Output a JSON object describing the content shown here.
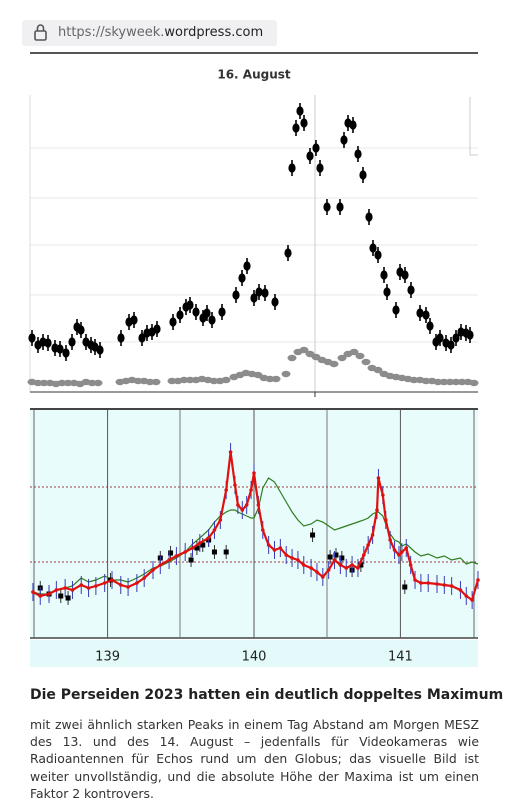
{
  "browser": {
    "url_start": "https://skyweek.",
    "url_domain": "wordpress.com"
  },
  "chart_data": [
    {
      "type": "scatter",
      "title": "16. August",
      "xlim": [
        0,
        448
      ],
      "ylim": [
        0,
        297
      ],
      "error": 8,
      "series": [
        {
          "color": "#000000",
          "marker": "dot",
          "x": [
            2,
            8,
            13,
            18,
            25,
            30,
            36,
            42,
            47,
            51,
            56,
            61,
            65,
            70,
            91,
            99,
            104,
            112,
            117,
            122,
            127,
            143,
            150,
            156,
            160,
            166,
            173,
            177,
            182,
            192,
            206,
            212,
            217,
            224,
            229,
            235,
            245,
            258,
            262,
            266,
            270,
            274,
            280,
            286,
            290,
            297,
            310,
            314,
            318,
            323,
            328,
            333,
            339,
            343,
            348,
            354,
            357,
            366,
            370,
            375,
            381,
            390,
            396,
            400,
            406,
            410,
            416,
            421,
            426,
            431,
            436,
            440
          ],
          "values": [
            54,
            47,
            50,
            49,
            44,
            43,
            39,
            50,
            65,
            62,
            50,
            47,
            45,
            42,
            54,
            70,
            72,
            54,
            59,
            60,
            63,
            70,
            77,
            85,
            87,
            80,
            74,
            79,
            72,
            80,
            97,
            114,
            126,
            94,
            100,
            99,
            90,
            139,
            224,
            264,
            281,
            269,
            236,
            244,
            224,
            185,
            185,
            252,
            269,
            267,
            238,
            217,
            175,
            144,
            137,
            117,
            100,
            82,
            120,
            117,
            102,
            79,
            77,
            66,
            50,
            54,
            49,
            47,
            54,
            60,
            59,
            57
          ]
        },
        {
          "color": "#8c8c8c",
          "marker": "flat",
          "x": [
            2,
            8,
            14,
            20,
            26,
            32,
            38,
            44,
            50,
            56,
            62,
            68,
            90,
            96,
            102,
            108,
            114,
            120,
            126,
            142,
            148,
            154,
            160,
            166,
            172,
            178,
            184,
            190,
            196,
            204,
            210,
            216,
            222,
            228,
            234,
            240,
            246,
            256,
            262,
            268,
            274,
            280,
            286,
            292,
            298,
            304,
            312,
            318,
            324,
            330,
            336,
            342,
            348,
            354,
            360,
            366,
            372,
            378,
            384,
            390,
            396,
            402,
            408,
            414,
            420,
            426,
            432,
            438,
            444
          ],
          "values": [
            10,
            9,
            9,
            9,
            8,
            9,
            9,
            9,
            8,
            10,
            9,
            9,
            10,
            11,
            12,
            11,
            11,
            10,
            10,
            11,
            11,
            12,
            12,
            12,
            13,
            12,
            11,
            11,
            12,
            15,
            17,
            19,
            18,
            17,
            14,
            13,
            13,
            18,
            34,
            40,
            42,
            38,
            35,
            32,
            30,
            28,
            34,
            38,
            40,
            36,
            30,
            24,
            22,
            18,
            16,
            15,
            14,
            13,
            12,
            12,
            11,
            11,
            10,
            10,
            10,
            10,
            10,
            10,
            9
          ]
        }
      ]
    },
    {
      "type": "line",
      "xlim": [
        138.47,
        141.53
      ],
      "xticks": [
        139,
        140,
        141
      ],
      "ylim": [
        0,
        228
      ],
      "x": [
        138.49,
        138.54,
        138.6,
        138.65,
        138.71,
        138.76,
        138.82,
        138.87,
        138.92,
        138.98,
        139.03,
        139.09,
        139.14,
        139.2,
        139.25,
        139.31,
        139.36,
        139.42,
        139.47,
        139.53,
        139.58,
        139.63,
        139.69,
        139.73,
        139.77,
        139.81,
        139.84,
        139.87,
        139.89,
        139.92,
        139.95,
        139.98,
        140,
        140.03,
        140.06,
        140.1,
        140.14,
        140.18,
        140.22,
        140.26,
        140.3,
        140.34,
        140.39,
        140.43,
        140.47,
        140.51,
        140.55,
        140.59,
        140.63,
        140.67,
        140.71,
        140.75,
        140.78,
        140.81,
        140.84,
        140.85,
        140.88,
        140.9,
        140.93,
        140.96,
        140.99,
        141.01,
        141.04,
        141.07,
        141.1,
        141.14,
        141.19,
        141.25,
        141.3,
        141.35,
        141.41,
        141.45,
        141.49,
        141.53
      ],
      "series": [
        {
          "color": "#2e7d1e",
          "values": [
            46,
            44,
            44,
            48,
            50,
            52,
            60,
            56,
            58,
            62,
            58,
            58,
            56,
            60,
            64,
            70,
            72,
            76,
            80,
            86,
            94,
            100,
            108,
            116,
            122,
            126,
            128,
            128,
            126,
            124,
            122,
            120,
            120,
            130,
            150,
            160,
            156,
            146,
            136,
            126,
            118,
            112,
            114,
            118,
            116,
            112,
            108,
            110,
            112,
            114,
            116,
            118,
            120,
            124,
            126,
            126,
            122,
            114,
            104,
            98,
            96,
            92,
            94,
            90,
            86,
            82,
            84,
            80,
            82,
            78,
            80,
            74,
            76,
            74
          ]
        },
        {
          "color": "#000000",
          "marker": "square",
          "error": 7,
          "x": [
            138.54,
            138.6,
            138.68,
            138.73,
            139.02,
            139.36,
            139.43,
            139.57,
            139.61,
            139.65,
            139.69,
            139.73,
            139.81,
            140.4,
            140.52,
            140.56,
            140.6,
            140.67,
            140.73,
            141.03
          ],
          "values": [
            50,
            44,
            42,
            40,
            58,
            80,
            85,
            78,
            90,
            93,
            98,
            86,
            86,
            103,
            81,
            83,
            80,
            68,
            73,
            51
          ]
        },
        {
          "color": "#e01010",
          "marker": "dot",
          "error": 9,
          "error_color": "#3a3ab8",
          "values": [
            46,
            42,
            44,
            48,
            50,
            48,
            53,
            50,
            52,
            55,
            58,
            53,
            51,
            55,
            60,
            68,
            73,
            78,
            82,
            86,
            90,
            95,
            100,
            108,
            118,
            148,
            186,
            153,
            133,
            128,
            133,
            148,
            165,
            133,
            108,
            93,
            88,
            90,
            83,
            80,
            78,
            73,
            70,
            66,
            61,
            68,
            78,
            73,
            70,
            73,
            70,
            83,
            93,
            103,
            128,
            160,
            143,
            118,
            98,
            88,
            83,
            86,
            90,
            73,
            58,
            55,
            55,
            54,
            53,
            52,
            48,
            42,
            38,
            58
          ]
        }
      ]
    }
  ],
  "article": {
    "heading": "Die Perseiden 2023 hatten ein deutlich doppeltes Maximum",
    "lines": [
      "mit zwei ähnlich starken Peaks in einem Tag Abstand am Morgen MESZ",
      "des 13. und des 14. August – jedenfalls für Videokameras wie",
      "Radioantennen für Echos rund um den Globus; das visuelle Bild ist",
      "weiter unvollständig, und die absolute Höhe der Maxima ist um einen",
      "Faktor 2 kontrovers."
    ]
  }
}
